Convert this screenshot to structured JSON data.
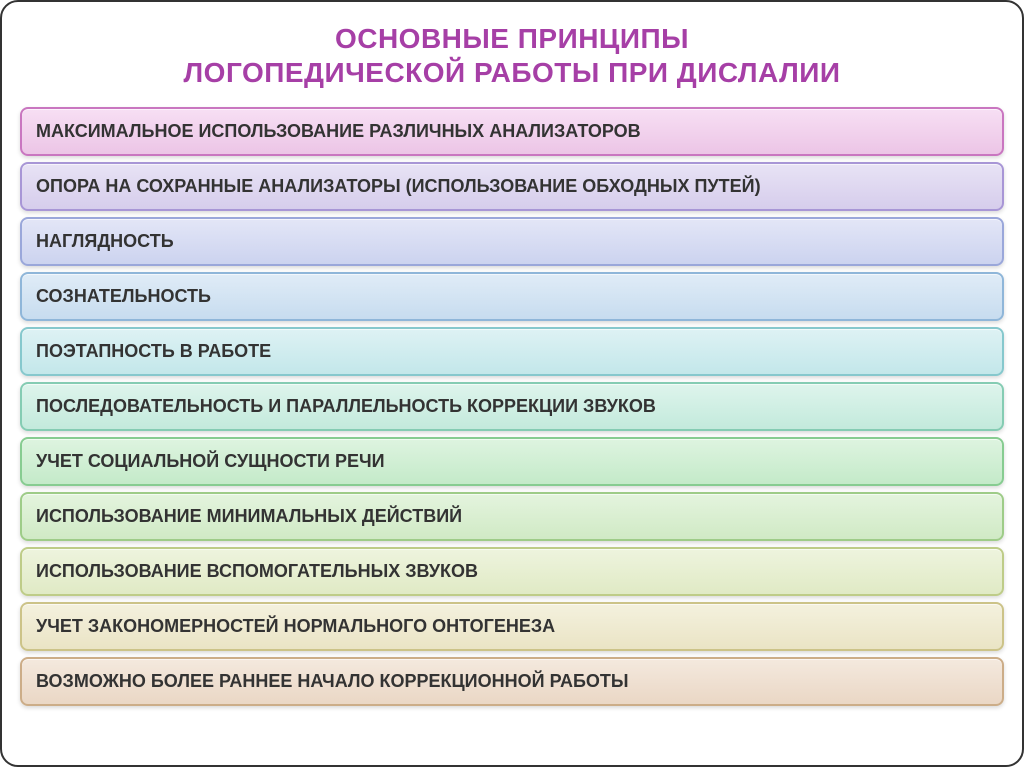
{
  "title": {
    "line1": "ОСНОВНЫЕ ПРИНЦИПЫ",
    "line2": "ЛОГОПЕДИЧЕСКОЙ РАБОТЫ ПРИ ДИСЛАЛИИ",
    "color": "#a63fa6",
    "fontsize": 28
  },
  "item_text_color": "#333333",
  "item_fontsize": 18,
  "items": [
    {
      "label": "МАКСИМАЛЬНОЕ ИСПОЛЬЗОВАНИЕ РАЗЛИЧНЫХ АНАЛИЗАТОРОВ",
      "bg_top": "#f7dff4",
      "bg_bottom": "#ecc5e6",
      "border": "#c976c0",
      "indent": 0
    },
    {
      "label": "ОПОРА НА СОХРАННЫЕ АНАЛИЗАТОРЫ (ИСПОЛЬЗОВАНИЕ ОБХОДНЫХ ПУТЕЙ)",
      "bg_top": "#e8e3f5",
      "bg_bottom": "#d6cdec",
      "border": "#a896d6",
      "indent": 0
    },
    {
      "label": "НАГЛЯДНОСТЬ",
      "bg_top": "#e3e6f7",
      "bg_bottom": "#ccd3ef",
      "border": "#9aa7da",
      "indent": 0
    },
    {
      "label": "СОЗНАТЕЛЬНОСТЬ",
      "bg_top": "#e0ecf7",
      "bg_bottom": "#c7dcef",
      "border": "#8fb6d9",
      "indent": 0
    },
    {
      "label": "ПОЭТАПНОСТЬ В РАБОТЕ",
      "bg_top": "#def2f4",
      "bg_bottom": "#c3e7ea",
      "border": "#86c8cd",
      "indent": 0
    },
    {
      "label": "ПОСЛЕДОВАТЕЛЬНОСТЬ И ПАРАЛЛЕЛЬНОСТЬ КОРРЕКЦИИ ЗВУКОВ",
      "bg_top": "#def4ec",
      "bg_bottom": "#c3eadc",
      "border": "#85ccb3",
      "indent": 0
    },
    {
      "label": "УЧЕТ  СОЦИАЛЬНОЙ СУЩНОСТИ РЕЧИ",
      "bg_top": "#def4e0",
      "bg_bottom": "#c4eac9",
      "border": "#87cc91",
      "indent": 0
    },
    {
      "label": "ИСПОЛЬЗОВАНИЕ МИНИМАЛЬНЫХ ДЕЙСТВИЙ",
      "bg_top": "#e4f4de",
      "bg_bottom": "#d0eac5",
      "border": "#9ecc88",
      "indent": 0
    },
    {
      "label": "ИСПОЛЬЗОВАНИЕ ВСПОМОГАТЕЛЬНЫХ ЗВУКОВ",
      "bg_top": "#eef4de",
      "bg_bottom": "#e0eac5",
      "border": "#becc88",
      "indent": 0
    },
    {
      "label": "УЧЕТ ЗАКОНОМЕРНОСТЕЙ НОРМАЛЬНОГО ОНТОГЕНЕЗА",
      "bg_top": "#f4f1de",
      "bg_bottom": "#eae4c5",
      "border": "#ccc388",
      "indent": 0
    },
    {
      "label": "ВОЗМОЖНО БОЛЕЕ РАННЕЕ НАЧАЛО КОРРЕКЦИОННОЙ РАБОТЫ",
      "bg_top": "#f4e9de",
      "bg_bottom": "#ead7c5",
      "border": "#ccad88",
      "indent": 0
    }
  ]
}
